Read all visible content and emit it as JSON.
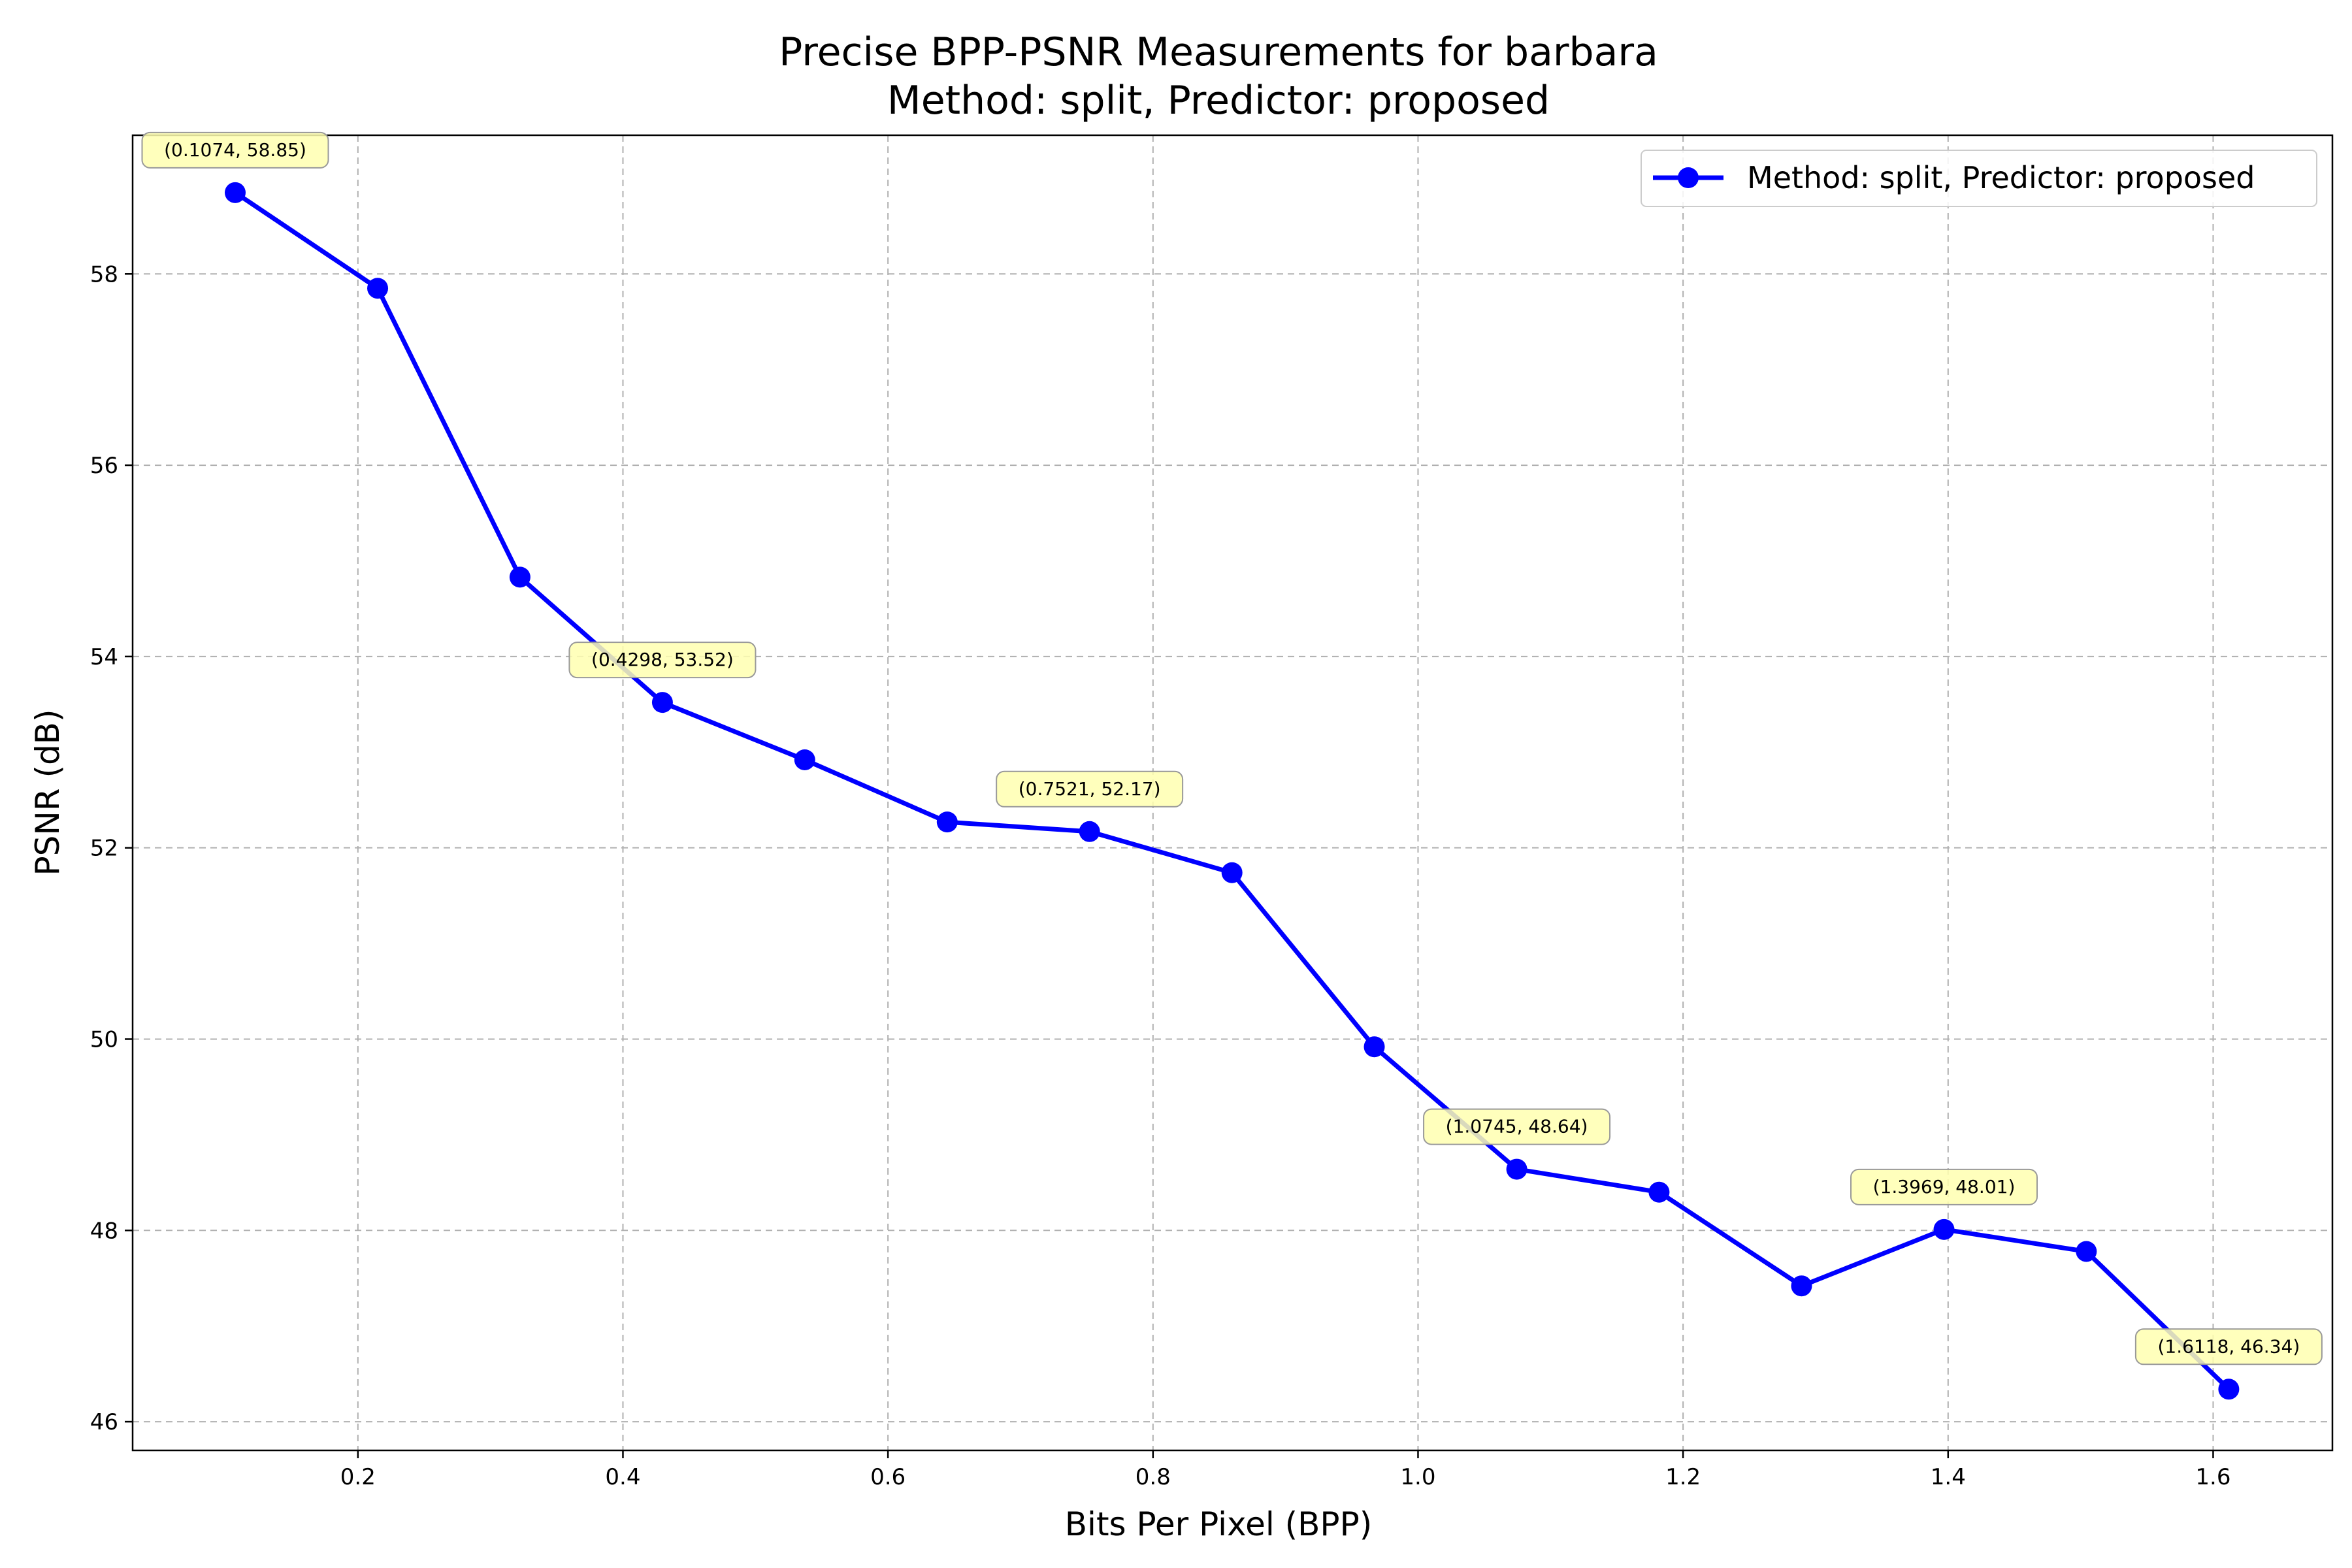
{
  "chart_data": {
    "type": "line",
    "title": "Precise BPP-PSNR Measurements for barbara",
    "subtitle": "Method: split, Predictor: proposed",
    "xlabel": "Bits Per Pixel (BPP)",
    "ylabel": "PSNR (dB)",
    "xlim": [
      0.03,
      1.69
    ],
    "ylim": [
      45.7,
      59.45
    ],
    "xticks": [
      0.2,
      0.4,
      0.6,
      0.8,
      1.0,
      1.2,
      1.4,
      1.6
    ],
    "xtick_labels": [
      "0.2",
      "0.4",
      "0.6",
      "0.8",
      "1.0",
      "1.2",
      "1.4",
      "1.6"
    ],
    "yticks": [
      46,
      48,
      50,
      52,
      54,
      56,
      58
    ],
    "ytick_labels": [
      "46",
      "48",
      "50",
      "52",
      "54",
      "56",
      "58"
    ],
    "grid": true,
    "legend_position": "top-right",
    "series": [
      {
        "name": "Method: split, Predictor: proposed",
        "color": "#0000ff",
        "marker": "circle",
        "x": [
          0.1074,
          0.2149,
          0.3223,
          0.4298,
          0.5372,
          0.6447,
          0.7521,
          0.8596,
          0.967,
          1.0745,
          1.1819,
          1.2894,
          1.3969,
          1.5043,
          1.6118
        ],
        "y": [
          58.85,
          57.85,
          54.83,
          53.52,
          52.92,
          52.27,
          52.17,
          51.74,
          49.92,
          48.64,
          48.4,
          47.42,
          48.01,
          47.78,
          46.34
        ]
      }
    ],
    "annotations": [
      {
        "text": "(0.1074, 58.85)",
        "x": 0.1074,
        "y": 58.85
      },
      {
        "text": "(0.4298, 53.52)",
        "x": 0.4298,
        "y": 53.52
      },
      {
        "text": "(0.7521, 52.17)",
        "x": 0.7521,
        "y": 52.17
      },
      {
        "text": "(1.0745, 48.64)",
        "x": 1.0745,
        "y": 48.64
      },
      {
        "text": "(1.3969, 48.01)",
        "x": 1.3969,
        "y": 48.01
      },
      {
        "text": "(1.6118, 46.34)",
        "x": 1.6118,
        "y": 46.34
      }
    ],
    "annotation_box_color": "#ffffb0"
  }
}
